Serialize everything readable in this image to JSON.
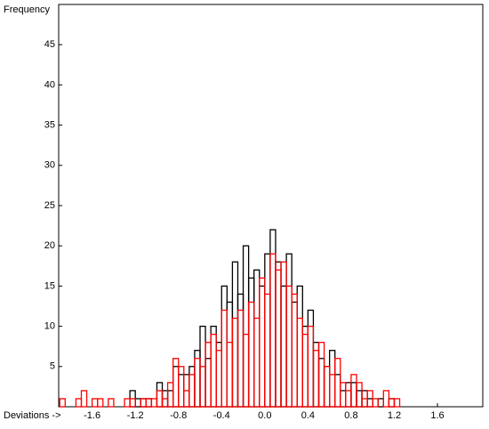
{
  "chart_data": {
    "type": "histogram",
    "y_label": "Frequency",
    "x_label": "Deviations ->",
    "bins": [
      -1.9,
      -1.85,
      -1.8,
      -1.75,
      -1.7,
      -1.65,
      -1.6,
      -1.55,
      -1.5,
      -1.45,
      -1.4,
      -1.35,
      -1.3,
      -1.25,
      -1.2,
      -1.15,
      -1.1,
      -1.05,
      -1.0,
      -0.95,
      -0.9,
      -0.85,
      -0.8,
      -0.75,
      -0.7,
      -0.65,
      -0.6,
      -0.55,
      -0.5,
      -0.45,
      -0.4,
      -0.35,
      -0.3,
      -0.25,
      -0.2,
      -0.15,
      -0.1,
      -0.05,
      0,
      0.05,
      0.1,
      0.15,
      0.2,
      0.25,
      0.3,
      0.35,
      0.4,
      0.45,
      0.5,
      0.55,
      0.6,
      0.65,
      0.7,
      0.75,
      0.8,
      0.85,
      0.9,
      0.95,
      1.0,
      1.05,
      1.1,
      1.15,
      1.2,
      1.25,
      1.3,
      1.35,
      1.4,
      1.45,
      1.5,
      1.55,
      1.6,
      1.65,
      1.7,
      1.75,
      1.8,
      1.85,
      1.9,
      1.95,
      2.0
    ],
    "series": [
      {
        "color": "#000000",
        "values": [
          0,
          0,
          0,
          0,
          0,
          0,
          0,
          0,
          0,
          0,
          0,
          0,
          0,
          2,
          1,
          1,
          1,
          0,
          3,
          2,
          2,
          5,
          4,
          4,
          5,
          7,
          10,
          6,
          10,
          8,
          15,
          13,
          18,
          14,
          20,
          16,
          17,
          15,
          19,
          22,
          18,
          15,
          19,
          13,
          15,
          10,
          12,
          8,
          6,
          5,
          7,
          4,
          2,
          3,
          3,
          2,
          2,
          1,
          0,
          1,
          0,
          1,
          0,
          0,
          0,
          0,
          0,
          0,
          0,
          0,
          0,
          0,
          0,
          0,
          0,
          0,
          0,
          0
        ]
      },
      {
        "color": "#ff0000",
        "values": [
          1,
          0,
          0,
          1,
          2,
          0,
          1,
          1,
          0,
          1,
          0,
          0,
          1,
          1,
          0,
          1,
          1,
          1,
          2,
          1,
          3,
          6,
          5,
          2,
          4,
          6,
          5,
          8,
          9,
          7,
          12,
          8,
          11,
          12,
          9,
          13,
          11,
          16,
          14,
          19,
          17,
          18,
          15,
          14,
          11,
          9,
          10,
          7,
          8,
          5,
          4,
          6,
          3,
          2,
          4,
          3,
          1,
          2,
          1,
          0,
          2,
          1,
          1,
          0,
          0,
          0,
          0,
          0,
          0,
          0,
          0,
          0,
          0,
          0,
          0,
          0,
          0,
          0
        ]
      }
    ],
    "xlim": [
      -1.91,
      2.02
    ],
    "ylim": [
      0,
      50
    ],
    "xticks": [
      -1.6,
      -1.2,
      -0.8,
      -0.4,
      {
        "value": 0,
        "label": "0.0"
      },
      0.4,
      0.8,
      1.2,
      1.6
    ],
    "yticks": [
      5,
      10,
      15,
      20,
      25,
      30,
      35,
      40,
      45
    ]
  }
}
